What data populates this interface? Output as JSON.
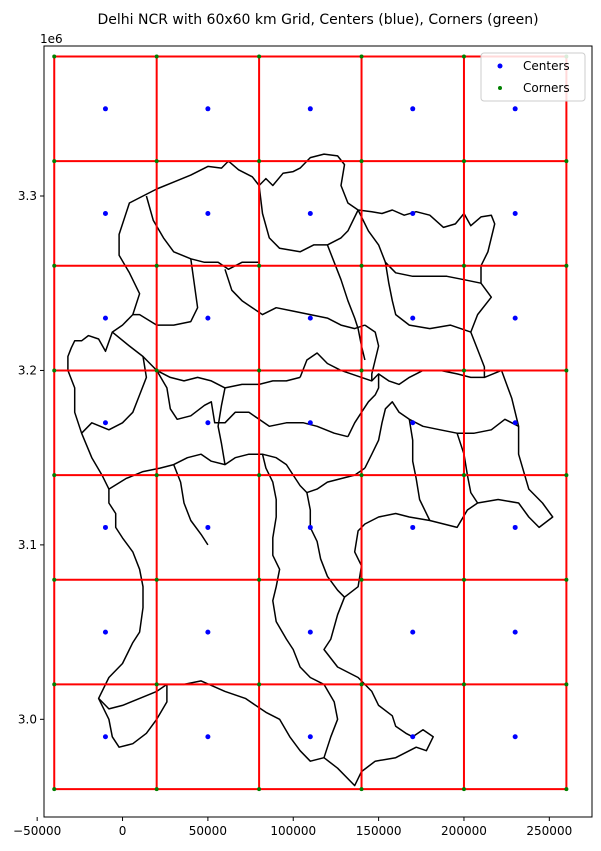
{
  "title": "Delhi NCR with 60x60 km Grid, Centers (blue), Corners (green)",
  "offset_label": "1e6",
  "colors": {
    "grid": "#ff0000",
    "centers": "#0000ff",
    "corners": "#008000",
    "boundary": "#000000"
  },
  "chart_data": {
    "type": "scatter",
    "xlim": [
      -46000,
      275000
    ],
    "ylim": [
      2944000,
      3386000
    ],
    "x_ticks": [
      -50000,
      0,
      50000,
      100000,
      150000,
      200000,
      250000
    ],
    "x_tick_labels": [
      "−50000",
      "0",
      "50000",
      "100000",
      "150000",
      "200000",
      "250000"
    ],
    "y_ticks": [
      3000000,
      3100000,
      3200000,
      3300000
    ],
    "y_tick_labels": [
      "3.0",
      "3.1",
      "3.2",
      "3.3"
    ],
    "grid_x": [
      -40000,
      20000,
      80000,
      140000,
      200000,
      260000
    ],
    "grid_y": [
      2960000,
      3020000,
      3080000,
      3140000,
      3200000,
      3260000,
      3320000,
      3380000
    ],
    "center_x": [
      -10000,
      50000,
      110000,
      170000,
      230000
    ],
    "center_y": [
      2990000,
      3050000,
      3110000,
      3170000,
      3230000,
      3290000,
      3350000
    ],
    "legend": {
      "position": "top-right",
      "entries": [
        {
          "label": "Centers",
          "color": "#0000ff"
        },
        {
          "label": "Corners",
          "color": "#008000"
        }
      ]
    }
  },
  "boundary_outline": [
    [
      -30000,
      3213000
    ],
    [
      -28000,
      3217000
    ],
    [
      -24000,
      3217000
    ],
    [
      -20000,
      3220000
    ],
    [
      -14000,
      3218000
    ],
    [
      -10000,
      3211000
    ],
    [
      -6000,
      3222000
    ],
    [
      0,
      3226000
    ],
    [
      6000,
      3232000
    ],
    [
      10000,
      3244000
    ],
    [
      4000,
      3256000
    ],
    [
      -2000,
      3266000
    ],
    [
      -2000,
      3278000
    ],
    [
      4000,
      3296000
    ],
    [
      12000,
      3300000
    ],
    [
      20000,
      3304000
    ],
    [
      30000,
      3308000
    ],
    [
      40000,
      3312000
    ],
    [
      50000,
      3317000
    ],
    [
      58000,
      3316000
    ],
    [
      62000,
      3320000
    ],
    [
      68000,
      3315000
    ],
    [
      76000,
      3311000
    ],
    [
      80000,
      3306000
    ],
    [
      84000,
      3310000
    ],
    [
      88000,
      3306000
    ],
    [
      94000,
      3313000
    ],
    [
      100000,
      3314000
    ],
    [
      104000,
      3316000
    ],
    [
      110000,
      3322000
    ],
    [
      118000,
      3324000
    ],
    [
      126000,
      3323000
    ],
    [
      130000,
      3318000
    ],
    [
      128000,
      3306000
    ],
    [
      132000,
      3296000
    ],
    [
      138000,
      3292000
    ],
    [
      146000,
      3291000
    ],
    [
      152000,
      3290000
    ],
    [
      158000,
      3292000
    ],
    [
      165000,
      3289000
    ],
    [
      172000,
      3291000
    ],
    [
      180000,
      3289000
    ],
    [
      188000,
      3282000
    ],
    [
      195000,
      3284000
    ],
    [
      200000,
      3290000
    ],
    [
      204000,
      3283000
    ],
    [
      210000,
      3288000
    ],
    [
      216000,
      3289000
    ],
    [
      218000,
      3284000
    ],
    [
      214000,
      3268000
    ],
    [
      210000,
      3260000
    ],
    [
      210000,
      3250000
    ],
    [
      216000,
      3242000
    ],
    [
      208000,
      3232000
    ],
    [
      204000,
      3222000
    ],
    [
      208000,
      3212000
    ],
    [
      212000,
      3202000
    ],
    [
      212000,
      3196000
    ],
    [
      222000,
      3200000
    ],
    [
      228000,
      3184000
    ],
    [
      232000,
      3168000
    ],
    [
      232000,
      3152000
    ],
    [
      238000,
      3132000
    ],
    [
      246000,
      3124000
    ],
    [
      252000,
      3116000
    ],
    [
      244000,
      3110000
    ],
    [
      238000,
      3116000
    ],
    [
      232000,
      3124000
    ],
    [
      220000,
      3126000
    ],
    [
      208000,
      3124000
    ],
    [
      202000,
      3120000
    ],
    [
      196000,
      3110000
    ],
    [
      180000,
      3114000
    ],
    [
      168000,
      3116000
    ],
    [
      160000,
      3118000
    ],
    [
      150000,
      3116000
    ],
    [
      142000,
      3112000
    ],
    [
      138000,
      3108000
    ],
    [
      136000,
      3096000
    ],
    [
      140000,
      3088000
    ],
    [
      138000,
      3076000
    ],
    [
      130000,
      3070000
    ],
    [
      126000,
      3060000
    ],
    [
      122000,
      3046000
    ],
    [
      118000,
      3040000
    ],
    [
      126000,
      3030000
    ],
    [
      138000,
      3024000
    ],
    [
      146000,
      3016000
    ],
    [
      150000,
      3008000
    ],
    [
      158000,
      3002000
    ],
    [
      160000,
      2996000
    ],
    [
      166000,
      2992000
    ],
    [
      170000,
      2990000
    ],
    [
      176000,
      2994000
    ],
    [
      182000,
      2990000
    ],
    [
      178000,
      2982000
    ],
    [
      172000,
      2984000
    ],
    [
      160000,
      2978000
    ],
    [
      148000,
      2976000
    ],
    [
      140000,
      2970000
    ],
    [
      136000,
      2962000
    ],
    [
      126000,
      2972000
    ],
    [
      118000,
      2978000
    ],
    [
      110000,
      2976000
    ],
    [
      104000,
      2982000
    ],
    [
      98000,
      2990000
    ],
    [
      92000,
      3000000
    ],
    [
      84000,
      3004000
    ],
    [
      72000,
      3012000
    ],
    [
      60000,
      3016000
    ],
    [
      46000,
      3022000
    ],
    [
      36000,
      3020000
    ],
    [
      26000,
      3020000
    ],
    [
      20000,
      3016000
    ],
    [
      10000,
      3012000
    ],
    [
      0,
      3008000
    ],
    [
      -8000,
      3006000
    ],
    [
      -14000,
      3012000
    ],
    [
      -8000,
      3024000
    ],
    [
      0,
      3032000
    ],
    [
      6000,
      3044000
    ],
    [
      10000,
      3050000
    ],
    [
      12000,
      3064000
    ],
    [
      12000,
      3076000
    ],
    [
      10000,
      3086000
    ],
    [
      6000,
      3096000
    ],
    [
      0,
      3104000
    ],
    [
      -4000,
      3110000
    ],
    [
      -4000,
      3118000
    ],
    [
      -8000,
      3124000
    ],
    [
      -8000,
      3132000
    ],
    [
      -12000,
      3140000
    ],
    [
      -18000,
      3150000
    ],
    [
      -24000,
      3164000
    ],
    [
      -28000,
      3176000
    ],
    [
      -28000,
      3190000
    ],
    [
      -32000,
      3200000
    ],
    [
      -32000,
      3208000
    ],
    [
      -30000,
      3213000
    ]
  ],
  "boundary_inner": [
    [
      [
        14000,
        3300000
      ],
      [
        18000,
        3286000
      ],
      [
        24000,
        3276000
      ],
      [
        30000,
        3268000
      ],
      [
        40000,
        3264000
      ],
      [
        48000,
        3262000
      ],
      [
        56000,
        3262000
      ],
      [
        62000,
        3258000
      ],
      [
        70000,
        3262000
      ],
      [
        80000,
        3262000
      ]
    ],
    [
      [
        80000,
        3306000
      ],
      [
        82000,
        3290000
      ],
      [
        86000,
        3276000
      ],
      [
        92000,
        3270000
      ],
      [
        104000,
        3268000
      ],
      [
        112000,
        3272000
      ],
      [
        120000,
        3272000
      ],
      [
        128000,
        3276000
      ],
      [
        132000,
        3280000
      ],
      [
        138000,
        3292000
      ]
    ],
    [
      [
        40000,
        3264000
      ],
      [
        42000,
        3250000
      ],
      [
        44000,
        3236000
      ],
      [
        40000,
        3228000
      ],
      [
        30000,
        3226000
      ],
      [
        20000,
        3226000
      ],
      [
        10000,
        3232000
      ],
      [
        6000,
        3232000
      ]
    ],
    [
      [
        60000,
        3258000
      ],
      [
        64000,
        3246000
      ],
      [
        70000,
        3240000
      ],
      [
        76000,
        3236000
      ],
      [
        82000,
        3232000
      ],
      [
        90000,
        3236000
      ],
      [
        100000,
        3234000
      ],
      [
        110000,
        3232000
      ],
      [
        120000,
        3230000
      ],
      [
        128000,
        3226000
      ],
      [
        136000,
        3224000
      ],
      [
        142000,
        3226000
      ]
    ],
    [
      [
        120000,
        3272000
      ],
      [
        124000,
        3262000
      ],
      [
        128000,
        3252000
      ],
      [
        132000,
        3240000
      ],
      [
        136000,
        3230000
      ],
      [
        138000,
        3224000
      ],
      [
        140000,
        3214000
      ],
      [
        142000,
        3206000
      ]
    ],
    [
      [
        138000,
        3292000
      ],
      [
        144000,
        3280000
      ],
      [
        150000,
        3272000
      ],
      [
        154000,
        3262000
      ],
      [
        160000,
        3256000
      ],
      [
        170000,
        3254000
      ],
      [
        180000,
        3254000
      ],
      [
        190000,
        3254000
      ],
      [
        200000,
        3252000
      ],
      [
        210000,
        3250000
      ]
    ],
    [
      [
        154000,
        3262000
      ],
      [
        156000,
        3250000
      ],
      [
        158000,
        3240000
      ],
      [
        160000,
        3232000
      ],
      [
        168000,
        3226000
      ],
      [
        180000,
        3224000
      ],
      [
        192000,
        3226000
      ],
      [
        204000,
        3222000
      ]
    ],
    [
      [
        -6000,
        3222000
      ],
      [
        4000,
        3214000
      ],
      [
        12000,
        3208000
      ],
      [
        20000,
        3200000
      ],
      [
        28000,
        3196000
      ],
      [
        36000,
        3194000
      ],
      [
        44000,
        3196000
      ],
      [
        52000,
        3194000
      ],
      [
        60000,
        3190000
      ],
      [
        70000,
        3192000
      ],
      [
        80000,
        3192000
      ],
      [
        88000,
        3194000
      ],
      [
        96000,
        3194000
      ],
      [
        104000,
        3196000
      ]
    ],
    [
      [
        12000,
        3208000
      ],
      [
        14000,
        3196000
      ],
      [
        10000,
        3186000
      ],
      [
        6000,
        3176000
      ],
      [
        0,
        3170000
      ],
      [
        -8000,
        3166000
      ],
      [
        -18000,
        3170000
      ],
      [
        -24000,
        3164000
      ]
    ],
    [
      [
        20000,
        3200000
      ],
      [
        26000,
        3190000
      ],
      [
        28000,
        3178000
      ],
      [
        32000,
        3172000
      ],
      [
        40000,
        3174000
      ],
      [
        48000,
        3180000
      ],
      [
        52000,
        3182000
      ],
      [
        54000,
        3170000
      ],
      [
        60000,
        3170000
      ],
      [
        66000,
        3176000
      ],
      [
        74000,
        3176000
      ],
      [
        80000,
        3172000
      ],
      [
        86000,
        3168000
      ],
      [
        96000,
        3170000
      ],
      [
        106000,
        3170000
      ],
      [
        114000,
        3168000
      ],
      [
        124000,
        3164000
      ],
      [
        132000,
        3162000
      ]
    ],
    [
      [
        -8000,
        3132000
      ],
      [
        2000,
        3138000
      ],
      [
        12000,
        3142000
      ],
      [
        22000,
        3144000
      ],
      [
        30000,
        3146000
      ],
      [
        38000,
        3150000
      ],
      [
        46000,
        3152000
      ],
      [
        52000,
        3148000
      ],
      [
        60000,
        3146000
      ],
      [
        66000,
        3150000
      ],
      [
        74000,
        3152000
      ],
      [
        82000,
        3152000
      ],
      [
        90000,
        3150000
      ],
      [
        96000,
        3146000
      ],
      [
        100000,
        3140000
      ],
      [
        104000,
        3134000
      ],
      [
        108000,
        3130000
      ],
      [
        114000,
        3132000
      ],
      [
        120000,
        3136000
      ],
      [
        128000,
        3138000
      ],
      [
        136000,
        3140000
      ],
      [
        142000,
        3144000
      ]
    ],
    [
      [
        30000,
        3146000
      ],
      [
        34000,
        3136000
      ],
      [
        36000,
        3124000
      ],
      [
        40000,
        3114000
      ],
      [
        46000,
        3106000
      ],
      [
        50000,
        3100000
      ]
    ],
    [
      [
        82000,
        3152000
      ],
      [
        84000,
        3144000
      ],
      [
        88000,
        3136000
      ],
      [
        90000,
        3126000
      ],
      [
        90000,
        3116000
      ],
      [
        88000,
        3104000
      ],
      [
        88000,
        3094000
      ],
      [
        92000,
        3086000
      ],
      [
        90000,
        3076000
      ],
      [
        88000,
        3068000
      ],
      [
        90000,
        3056000
      ],
      [
        96000,
        3046000
      ],
      [
        100000,
        3040000
      ],
      [
        104000,
        3030000
      ],
      [
        110000,
        3024000
      ],
      [
        118000,
        3020000
      ],
      [
        124000,
        3010000
      ],
      [
        126000,
        3000000
      ],
      [
        122000,
        2990000
      ],
      [
        118000,
        2978000
      ]
    ],
    [
      [
        108000,
        3130000
      ],
      [
        110000,
        3120000
      ],
      [
        110000,
        3110000
      ],
      [
        114000,
        3102000
      ],
      [
        116000,
        3092000
      ],
      [
        120000,
        3082000
      ],
      [
        126000,
        3074000
      ],
      [
        130000,
        3070000
      ]
    ],
    [
      [
        104000,
        3196000
      ],
      [
        108000,
        3206000
      ],
      [
        114000,
        3210000
      ],
      [
        120000,
        3204000
      ],
      [
        128000,
        3200000
      ],
      [
        134000,
        3198000
      ],
      [
        140000,
        3196000
      ],
      [
        146000,
        3194000
      ],
      [
        150000,
        3198000
      ],
      [
        156000,
        3194000
      ],
      [
        162000,
        3192000
      ],
      [
        168000,
        3196000
      ],
      [
        176000,
        3200000
      ],
      [
        186000,
        3200000
      ],
      [
        196000,
        3198000
      ],
      [
        204000,
        3196000
      ],
      [
        212000,
        3196000
      ]
    ],
    [
      [
        132000,
        3162000
      ],
      [
        136000,
        3170000
      ],
      [
        140000,
        3176000
      ],
      [
        144000,
        3182000
      ],
      [
        148000,
        3186000
      ],
      [
        150000,
        3190000
      ],
      [
        150000,
        3198000
      ]
    ],
    [
      [
        142000,
        3144000
      ],
      [
        146000,
        3152000
      ],
      [
        150000,
        3160000
      ],
      [
        152000,
        3170000
      ],
      [
        154000,
        3178000
      ],
      [
        158000,
        3182000
      ],
      [
        162000,
        3176000
      ],
      [
        168000,
        3172000
      ],
      [
        176000,
        3168000
      ],
      [
        186000,
        3166000
      ],
      [
        196000,
        3164000
      ],
      [
        206000,
        3164000
      ],
      [
        216000,
        3166000
      ],
      [
        224000,
        3172000
      ],
      [
        232000,
        3168000
      ]
    ],
    [
      [
        168000,
        3172000
      ],
      [
        170000,
        3160000
      ],
      [
        170000,
        3148000
      ],
      [
        172000,
        3138000
      ],
      [
        174000,
        3126000
      ],
      [
        180000,
        3114000
      ]
    ],
    [
      [
        196000,
        3164000
      ],
      [
        200000,
        3152000
      ],
      [
        202000,
        3140000
      ],
      [
        204000,
        3130000
      ],
      [
        208000,
        3124000
      ]
    ],
    [
      [
        142000,
        3226000
      ],
      [
        148000,
        3222000
      ],
      [
        150000,
        3214000
      ],
      [
        148000,
        3206000
      ],
      [
        146000,
        3198000
      ],
      [
        146000,
        3194000
      ]
    ],
    [
      [
        60000,
        3190000
      ],
      [
        58000,
        3180000
      ],
      [
        56000,
        3168000
      ],
      [
        58000,
        3158000
      ],
      [
        60000,
        3146000
      ]
    ],
    [
      [
        -14000,
        3012000
      ],
      [
        -8000,
        3000000
      ],
      [
        -6000,
        2990000
      ],
      [
        -2000,
        2984000
      ],
      [
        6000,
        2986000
      ],
      [
        14000,
        2992000
      ],
      [
        20000,
        3000000
      ],
      [
        26000,
        3010000
      ],
      [
        26000,
        3020000
      ]
    ]
  ]
}
